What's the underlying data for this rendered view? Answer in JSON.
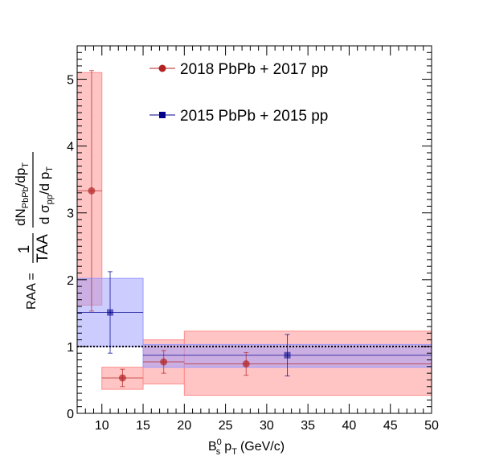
{
  "chart_data": {
    "type": "scatter",
    "xlim": [
      7,
      50
    ],
    "ylim": [
      0,
      5.5
    ],
    "x_ticks": [
      10,
      15,
      20,
      25,
      30,
      35,
      40,
      45,
      50
    ],
    "y_ticks": [
      0,
      1,
      2,
      3,
      4,
      5
    ],
    "xlabel": {
      "main": "B",
      "sup": "0",
      "sub": "s",
      "p": "p",
      "psub": "T",
      "unit": "(GeV/c)"
    },
    "ylabel": {
      "lhs": "RAA =",
      "frac1_num": "1",
      "frac1_den": "TAA",
      "frac2_num": {
        "a": "dN",
        "a_sub": "PbPb",
        "b": "/dp",
        "b_sub": "T"
      },
      "frac2_den": {
        "a": "d σ",
        "a_sub": "pp",
        "b": "/d p",
        "b_sub": "T"
      }
    },
    "reference_line": 1,
    "series": [
      {
        "name": "2018 PbPb + 2017 pp",
        "color": "#b22222",
        "fill": "#ff8c8c",
        "marker": "circle",
        "points": [
          {
            "x": 8.75,
            "xlow": 7,
            "xhigh": 10,
            "y": 3.33,
            "err": 1.8,
            "syslow": 1.62,
            "syshigh": 5.1
          },
          {
            "x": 12.5,
            "xlow": 10,
            "xhigh": 15,
            "y": 0.53,
            "err": 0.13,
            "syslow": 0.36,
            "syshigh": 0.69
          },
          {
            "x": 17.5,
            "xlow": 15,
            "xhigh": 20,
            "y": 0.77,
            "err": 0.17,
            "syslow": 0.44,
            "syshigh": 1.1
          },
          {
            "x": 27.5,
            "xlow": 20,
            "xhigh": 50,
            "y": 0.74,
            "err": 0.17,
            "syslow": 0.27,
            "syshigh": 1.23
          }
        ]
      },
      {
        "name": "2015 PbPb + 2015 pp",
        "color": "#00008b",
        "fill": "#9999ff",
        "marker": "square",
        "points": [
          {
            "x": 11,
            "xlow": 7,
            "xhigh": 15,
            "y": 1.51,
            "err": 0.61,
            "syslow": 1.0,
            "syshigh": 2.02
          },
          {
            "x": 32.5,
            "xlow": 15,
            "xhigh": 50,
            "y": 0.87,
            "err": 0.31,
            "syslow": 0.69,
            "syshigh": 1.03
          }
        ]
      }
    ]
  }
}
